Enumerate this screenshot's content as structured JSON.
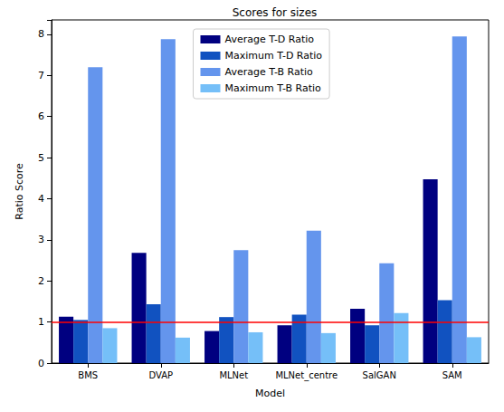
{
  "chart_data": {
    "type": "bar",
    "title": "Scores for sizes",
    "x_label": "Model",
    "y_label": "Ratio Score",
    "categories": [
      "BMS",
      "DVAP",
      "MLNet",
      "MLNet_centre",
      "SalGAN",
      "SAM"
    ],
    "series": [
      {
        "name": "Average T-D Ratio",
        "color": "#000080",
        "values": [
          1.13,
          2.68,
          0.78,
          0.92,
          1.32,
          4.47
        ]
      },
      {
        "name": "Maximum T-D Ratio",
        "color": "#1152c0",
        "values": [
          1.05,
          1.43,
          1.12,
          1.18,
          0.92,
          1.53
        ]
      },
      {
        "name": "Average T-B Ratio",
        "color": "#6495ed",
        "values": [
          7.2,
          7.88,
          2.75,
          3.22,
          2.43,
          7.95
        ]
      },
      {
        "name": "Maximum T-B Ratio",
        "color": "#75bff8",
        "values": [
          0.85,
          0.62,
          0.75,
          0.73,
          1.22,
          0.63
        ]
      }
    ],
    "reference_line": {
      "value": 1,
      "color": "#ff0000"
    },
    "ylim": [
      0,
      8.35
    ],
    "yticks": [
      0,
      1,
      2,
      3,
      4,
      5,
      6,
      7,
      8
    ],
    "grid": false,
    "legend": "upper center"
  }
}
